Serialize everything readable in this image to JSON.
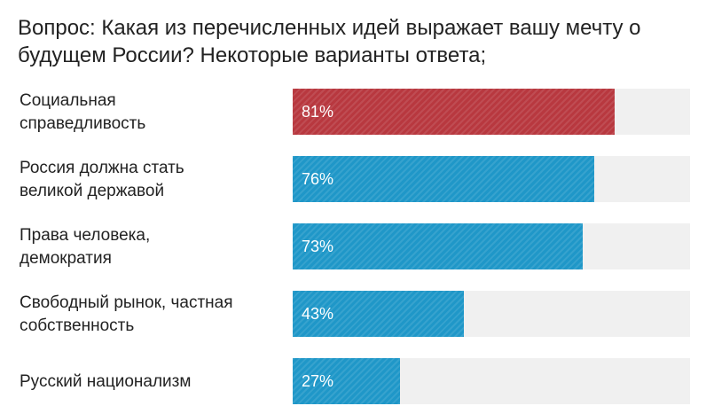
{
  "chart_data": {
    "type": "bar",
    "orientation": "horizontal",
    "title": "Вопрос: Какая из перечисленных идей выражает вашу мечту о будущем России? Некоторые варианты ответа;",
    "categories": [
      "Социальная справедливость",
      "Россия должна стать великой державой",
      "Права человека, демократия",
      "Свободный рынок, частная собственность",
      "Русский национализм"
    ],
    "label_lines": [
      [
        "Социальная",
        "справедливость"
      ],
      [
        "Россия должна стать",
        "великой державой"
      ],
      [
        "Права человека,",
        "демократия"
      ],
      [
        "Свободный рынок, частная",
        "собственность"
      ],
      [
        "Русский национализм"
      ]
    ],
    "values": [
      81,
      76,
      73,
      43,
      27
    ],
    "value_labels": [
      "81%",
      "76%",
      "73%",
      "43%",
      "27%"
    ],
    "xlim": [
      0,
      100
    ],
    "grid": false,
    "colors": {
      "highlight": "#b8383f",
      "bar": "#1f97c8",
      "track": "#f0f0f0"
    },
    "highlight_index": 0
  }
}
